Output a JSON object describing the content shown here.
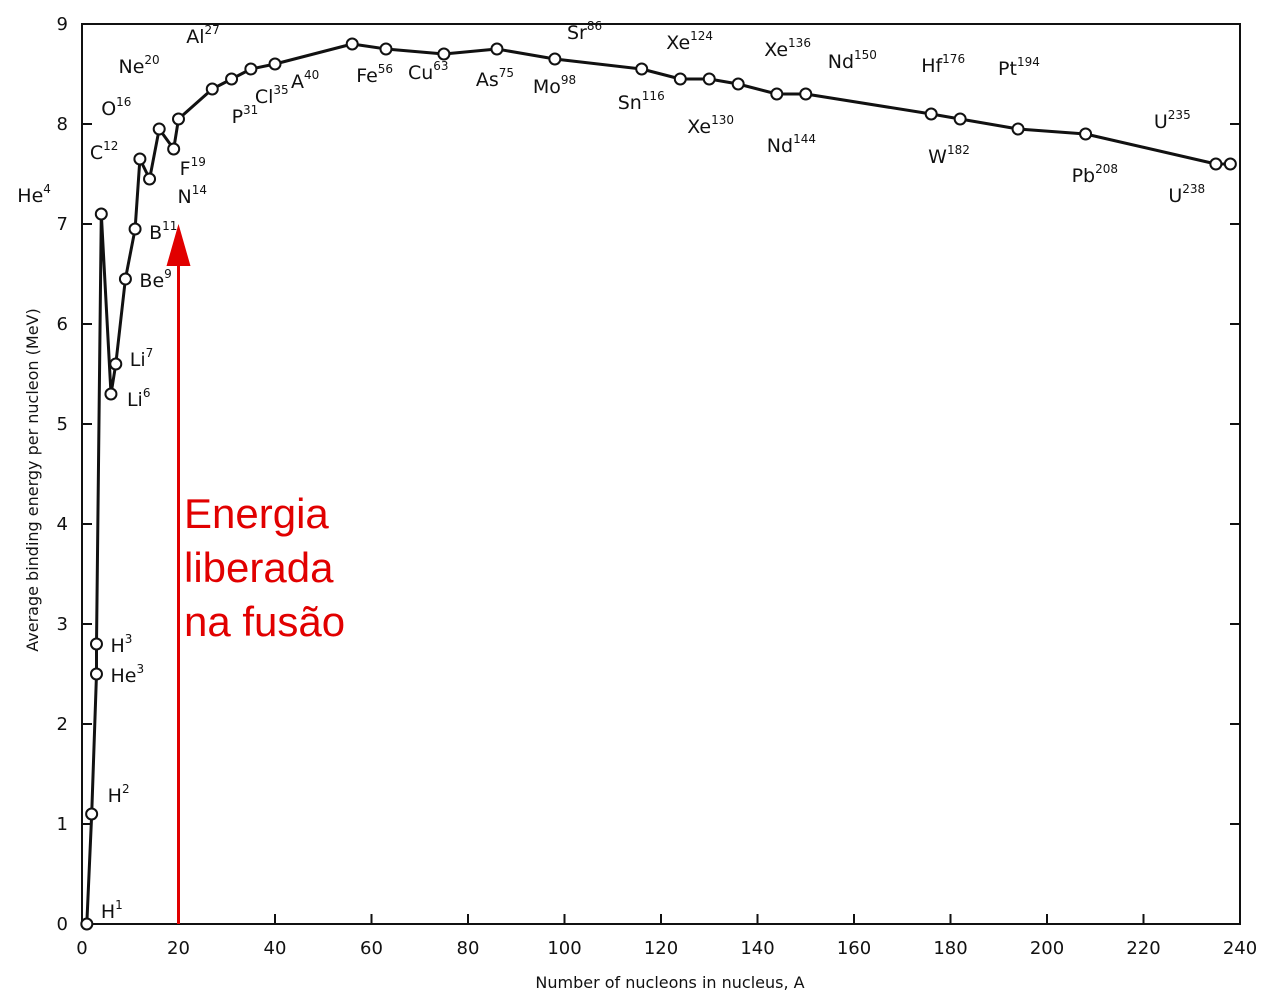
{
  "chart_data": {
    "type": "line",
    "title": "",
    "xlabel": "Number of nucleons in nucleus, A",
    "ylabel": "Average binding energy per nucleon (MeV)",
    "xlim": [
      0,
      240
    ],
    "ylim": [
      0,
      9
    ],
    "x_ticks": [
      "0",
      "20",
      "40",
      "60",
      "80",
      "100",
      "120",
      "140",
      "160",
      "180",
      "200",
      "220",
      "240"
    ],
    "y_ticks": [
      "0",
      "1",
      "2",
      "3",
      "4",
      "5",
      "6",
      "7",
      "8",
      "9"
    ],
    "grid": false,
    "series": [
      {
        "points": [
          {
            "label": "H",
            "mass": "1",
            "x": 1,
            "y": 0.0
          },
          {
            "label": "H",
            "mass": "2",
            "x": 2,
            "y": 1.1
          },
          {
            "label": "He",
            "mass": "3",
            "x": 3,
            "y": 2.5
          },
          {
            "label": "H",
            "mass": "3",
            "x": 3,
            "y": 2.8
          },
          {
            "label": "He",
            "mass": "4",
            "x": 4,
            "y": 7.1
          },
          {
            "label": "Li",
            "mass": "6",
            "x": 6,
            "y": 5.3
          },
          {
            "label": "Li",
            "mass": "7",
            "x": 7,
            "y": 5.6
          },
          {
            "label": "Be",
            "mass": "9",
            "x": 9,
            "y": 6.45
          },
          {
            "label": "B",
            "mass": "11",
            "x": 11,
            "y": 6.95
          },
          {
            "label": "C",
            "mass": "12",
            "x": 12,
            "y": 7.65
          },
          {
            "label": "N",
            "mass": "14",
            "x": 14,
            "y": 7.45
          },
          {
            "label": "O",
            "mass": "16",
            "x": 16,
            "y": 7.95
          },
          {
            "label": "F",
            "mass": "19",
            "x": 19,
            "y": 7.75
          },
          {
            "label": "Ne",
            "mass": "20",
            "x": 20,
            "y": 8.05
          },
          {
            "label": "Al",
            "mass": "27",
            "x": 27,
            "y": 8.35
          },
          {
            "label": "P",
            "mass": "31",
            "x": 31,
            "y": 8.45
          },
          {
            "label": "Cl",
            "mass": "35",
            "x": 35,
            "y": 8.55
          },
          {
            "label": "A",
            "mass": "40",
            "x": 40,
            "y": 8.6
          },
          {
            "label": "Fe",
            "mass": "56",
            "x": 56,
            "y": 8.8
          },
          {
            "label": "Cu",
            "mass": "63",
            "x": 63,
            "y": 8.75
          },
          {
            "label": "As",
            "mass": "75",
            "x": 75,
            "y": 8.7
          },
          {
            "label": "Sr",
            "mass": "86",
            "x": 86,
            "y": 8.75
          },
          {
            "label": "Mo",
            "mass": "98",
            "x": 98,
            "y": 8.65
          },
          {
            "label": "Sn",
            "mass": "116",
            "x": 116,
            "y": 8.55
          },
          {
            "label": "Xe",
            "mass": "124",
            "x": 124,
            "y": 8.45
          },
          {
            "label": "Xe",
            "mass": "130",
            "x": 130,
            "y": 8.45
          },
          {
            "label": "Xe",
            "mass": "136",
            "x": 136,
            "y": 8.4
          },
          {
            "label": "Nd",
            "mass": "144",
            "x": 144,
            "y": 8.3
          },
          {
            "label": "Nd",
            "mass": "150",
            "x": 150,
            "y": 8.3
          },
          {
            "label": "Hf",
            "mass": "176",
            "x": 176,
            "y": 8.1
          },
          {
            "label": "W",
            "mass": "182",
            "x": 182,
            "y": 8.05
          },
          {
            "label": "Pt",
            "mass": "194",
            "x": 194,
            "y": 7.95
          },
          {
            "label": "Pb",
            "mass": "208",
            "x": 208,
            "y": 7.9
          },
          {
            "label": "U",
            "mass": "235",
            "x": 235,
            "y": 7.6
          },
          {
            "label": "U",
            "mass": "238",
            "x": 238,
            "y": 7.6
          }
        ]
      }
    ],
    "annotation": {
      "lines": [
        "Energia",
        "liberada",
        "na fusão"
      ],
      "arrow_x": 20,
      "arrow_y_start": 0,
      "arrow_y_end": 7.0,
      "color": "#e10000"
    }
  }
}
